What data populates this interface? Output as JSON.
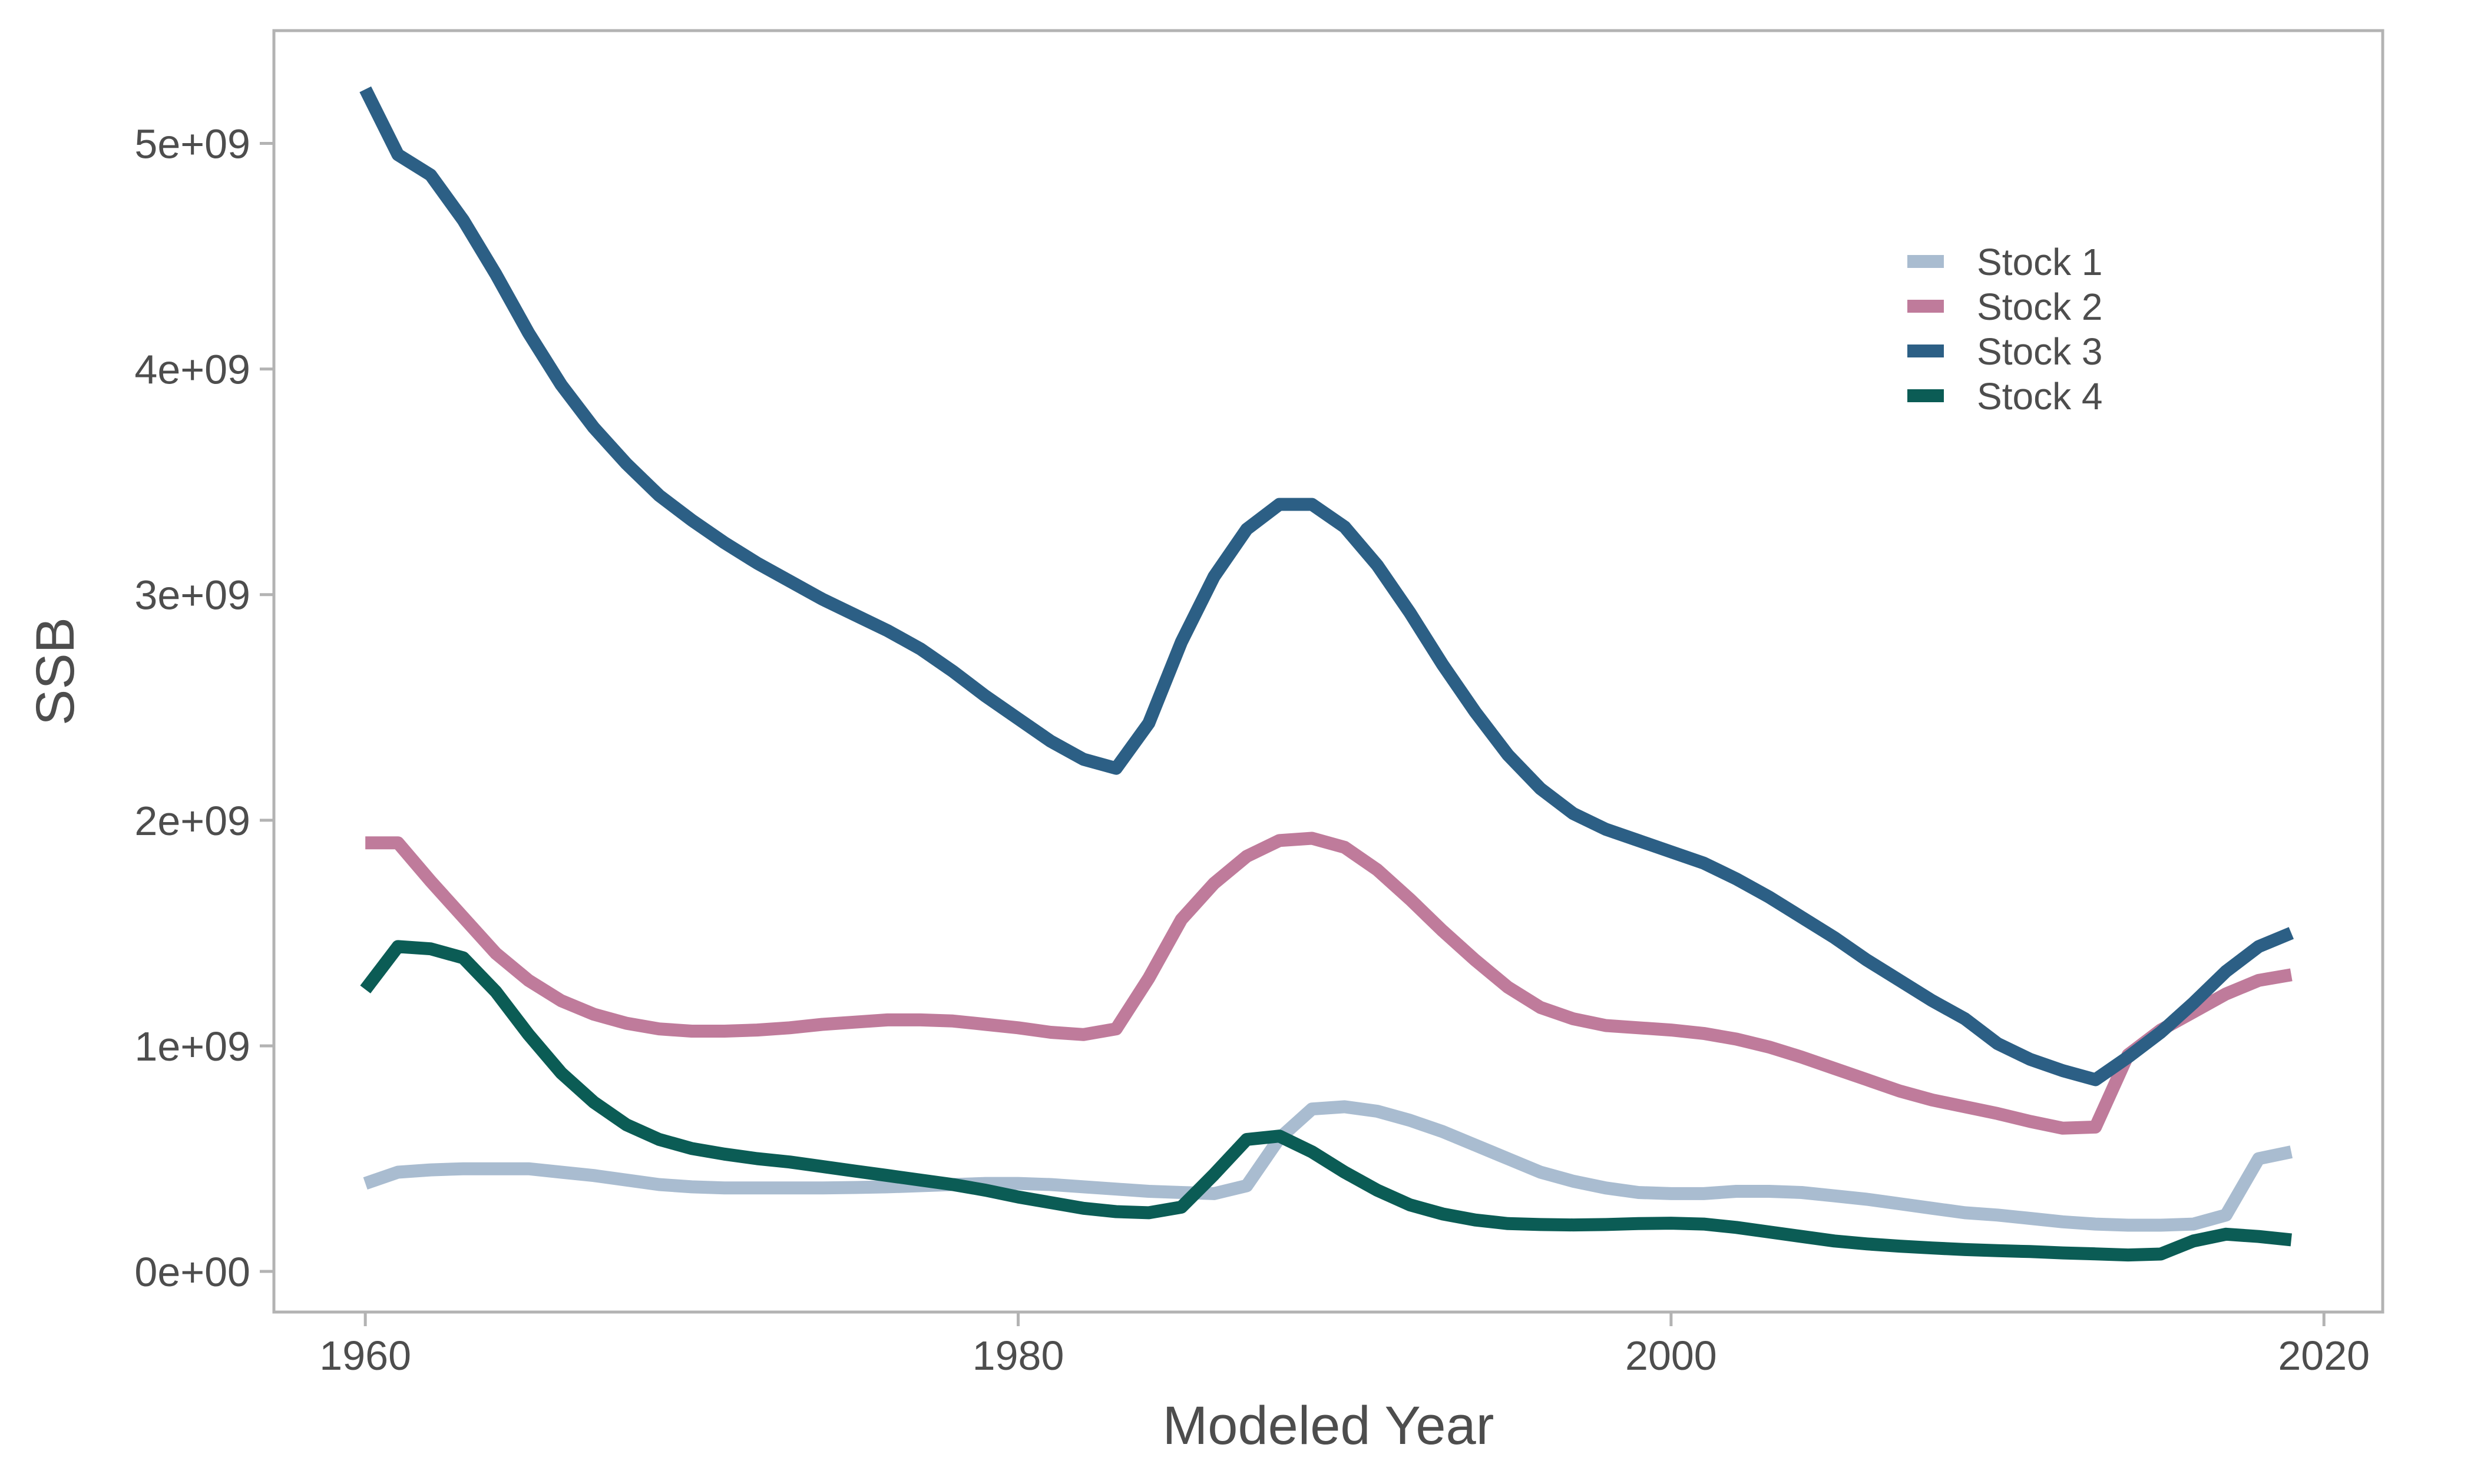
{
  "chart_data": {
    "type": "line",
    "xlabel": "Modeled Year",
    "ylabel": "SSB",
    "xlim": [
      1957.2,
      2021.8
    ],
    "ylim": [
      -180000000,
      5500000000
    ],
    "x_ticks": [
      1960,
      1980,
      2000,
      2020
    ],
    "x_tick_labels": [
      "1960",
      "1980",
      "2000",
      "2020"
    ],
    "y_ticks": [
      0,
      1000000000,
      2000000000,
      3000000000,
      4000000000,
      5000000000
    ],
    "y_tick_labels": [
      "0e+00",
      "1e+09",
      "2e+09",
      "3e+09",
      "4e+09",
      "5e+09"
    ],
    "grid": false,
    "legend_position": "top-right",
    "x": [
      1960,
      1961,
      1962,
      1963,
      1964,
      1965,
      1966,
      1967,
      1968,
      1969,
      1970,
      1971,
      1972,
      1973,
      1974,
      1975,
      1976,
      1977,
      1978,
      1979,
      1980,
      1981,
      1982,
      1983,
      1984,
      1985,
      1986,
      1987,
      1988,
      1989,
      1990,
      1991,
      1992,
      1993,
      1994,
      1995,
      1996,
      1997,
      1998,
      1999,
      2000,
      2001,
      2002,
      2003,
      2004,
      2005,
      2006,
      2007,
      2008,
      2009,
      2010,
      2011,
      2012,
      2013,
      2014,
      2015,
      2016,
      2017,
      2018,
      2019
    ],
    "series": [
      {
        "name": "Stock 1",
        "color": "#a9bcd0",
        "values": [
          390000000,
          440000000,
          450000000,
          455000000,
          455000000,
          455000000,
          440000000,
          425000000,
          405000000,
          385000000,
          375000000,
          370000000,
          370000000,
          370000000,
          370000000,
          372000000,
          375000000,
          380000000,
          385000000,
          390000000,
          390000000,
          385000000,
          375000000,
          365000000,
          355000000,
          350000000,
          345000000,
          380000000,
          590000000,
          720000000,
          730000000,
          710000000,
          670000000,
          620000000,
          560000000,
          500000000,
          440000000,
          400000000,
          370000000,
          350000000,
          345000000,
          345000000,
          355000000,
          355000000,
          350000000,
          335000000,
          320000000,
          300000000,
          280000000,
          260000000,
          250000000,
          235000000,
          220000000,
          210000000,
          205000000,
          205000000,
          210000000,
          250000000,
          500000000,
          530000000
        ]
      },
      {
        "name": "Stock 2",
        "color": "#bf7b9b",
        "values": [
          1900000000,
          1900000000,
          1730000000,
          1570000000,
          1410000000,
          1290000000,
          1200000000,
          1140000000,
          1100000000,
          1075000000,
          1065000000,
          1065000000,
          1070000000,
          1080000000,
          1095000000,
          1105000000,
          1115000000,
          1115000000,
          1110000000,
          1095000000,
          1080000000,
          1060000000,
          1050000000,
          1075000000,
          1300000000,
          1560000000,
          1720000000,
          1840000000,
          1910000000,
          1920000000,
          1880000000,
          1780000000,
          1650000000,
          1510000000,
          1380000000,
          1260000000,
          1170000000,
          1120000000,
          1090000000,
          1080000000,
          1070000000,
          1055000000,
          1030000000,
          995000000,
          950000000,
          900000000,
          850000000,
          800000000,
          760000000,
          730000000,
          700000000,
          665000000,
          635000000,
          640000000,
          960000000,
          1070000000,
          1150000000,
          1230000000,
          1290000000,
          1315000000
        ]
      },
      {
        "name": "Stock 3",
        "color": "#2c5f85",
        "values": [
          5240000000,
          4950000000,
          4860000000,
          4660000000,
          4420000000,
          4160000000,
          3930000000,
          3740000000,
          3580000000,
          3440000000,
          3330000000,
          3230000000,
          3140000000,
          3060000000,
          2980000000,
          2910000000,
          2840000000,
          2760000000,
          2660000000,
          2550000000,
          2450000000,
          2350000000,
          2270000000,
          2230000000,
          2430000000,
          2790000000,
          3080000000,
          3290000000,
          3400000000,
          3400000000,
          3300000000,
          3130000000,
          2920000000,
          2690000000,
          2480000000,
          2290000000,
          2140000000,
          2030000000,
          1960000000,
          1910000000,
          1860000000,
          1810000000,
          1740000000,
          1660000000,
          1570000000,
          1480000000,
          1380000000,
          1290000000,
          1200000000,
          1120000000,
          1010000000,
          940000000,
          890000000,
          850000000,
          950000000,
          1060000000,
          1190000000,
          1330000000,
          1440000000,
          1500000000
        ]
      },
      {
        "name": "Stock 4",
        "color": "#0b5c55",
        "values": [
          1250000000,
          1440000000,
          1430000000,
          1390000000,
          1240000000,
          1050000000,
          880000000,
          750000000,
          650000000,
          585000000,
          545000000,
          520000000,
          500000000,
          485000000,
          465000000,
          445000000,
          425000000,
          405000000,
          385000000,
          360000000,
          330000000,
          305000000,
          280000000,
          265000000,
          260000000,
          285000000,
          430000000,
          585000000,
          600000000,
          530000000,
          440000000,
          360000000,
          295000000,
          255000000,
          228000000,
          212000000,
          208000000,
          206000000,
          208000000,
          212000000,
          214000000,
          210000000,
          195000000,
          175000000,
          155000000,
          135000000,
          122000000,
          112000000,
          104000000,
          97000000,
          92000000,
          88000000,
          82000000,
          78000000,
          73000000,
          77000000,
          135000000,
          165000000,
          155000000,
          140000000
        ]
      }
    ]
  }
}
